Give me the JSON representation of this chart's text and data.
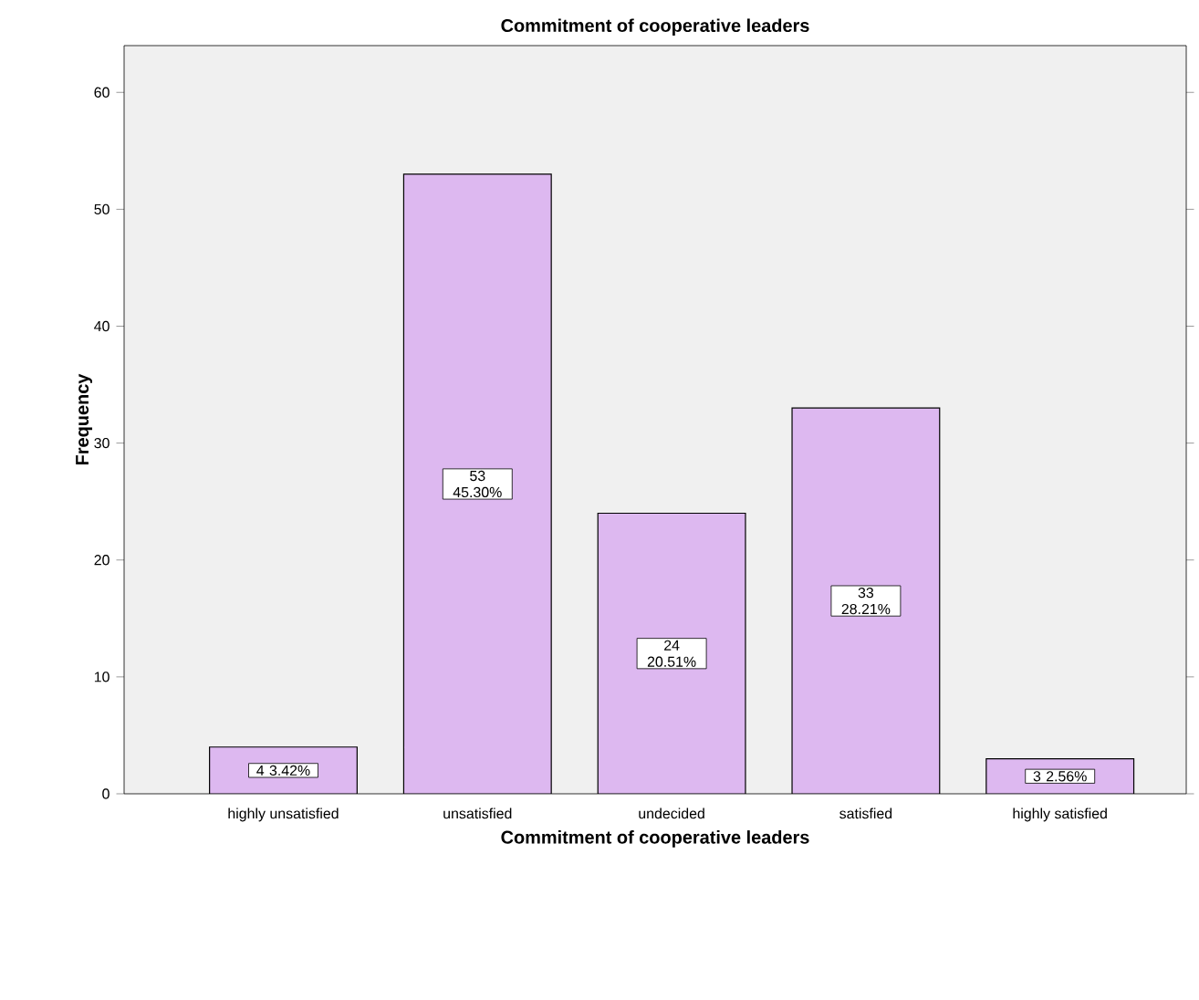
{
  "chart_data": {
    "type": "bar",
    "title": "Commitment of cooperative leaders",
    "xlabel": "Commitment of cooperative leaders",
    "ylabel": "Frequency",
    "categories": [
      "highly unsatisfied",
      "unsatisfied",
      "undecided",
      "satisfied",
      "highly satisfied"
    ],
    "values": [
      4,
      53,
      24,
      33,
      3
    ],
    "value_labels": [
      "4 3.42%",
      "53 45.30%",
      "24 20.51%",
      "33 28.21%",
      "3 2.56%"
    ],
    "color": "#ddb8f0",
    "ylim": [
      0,
      64
    ],
    "yticks": [
      0,
      10,
      20,
      30,
      40,
      50,
      60
    ]
  }
}
